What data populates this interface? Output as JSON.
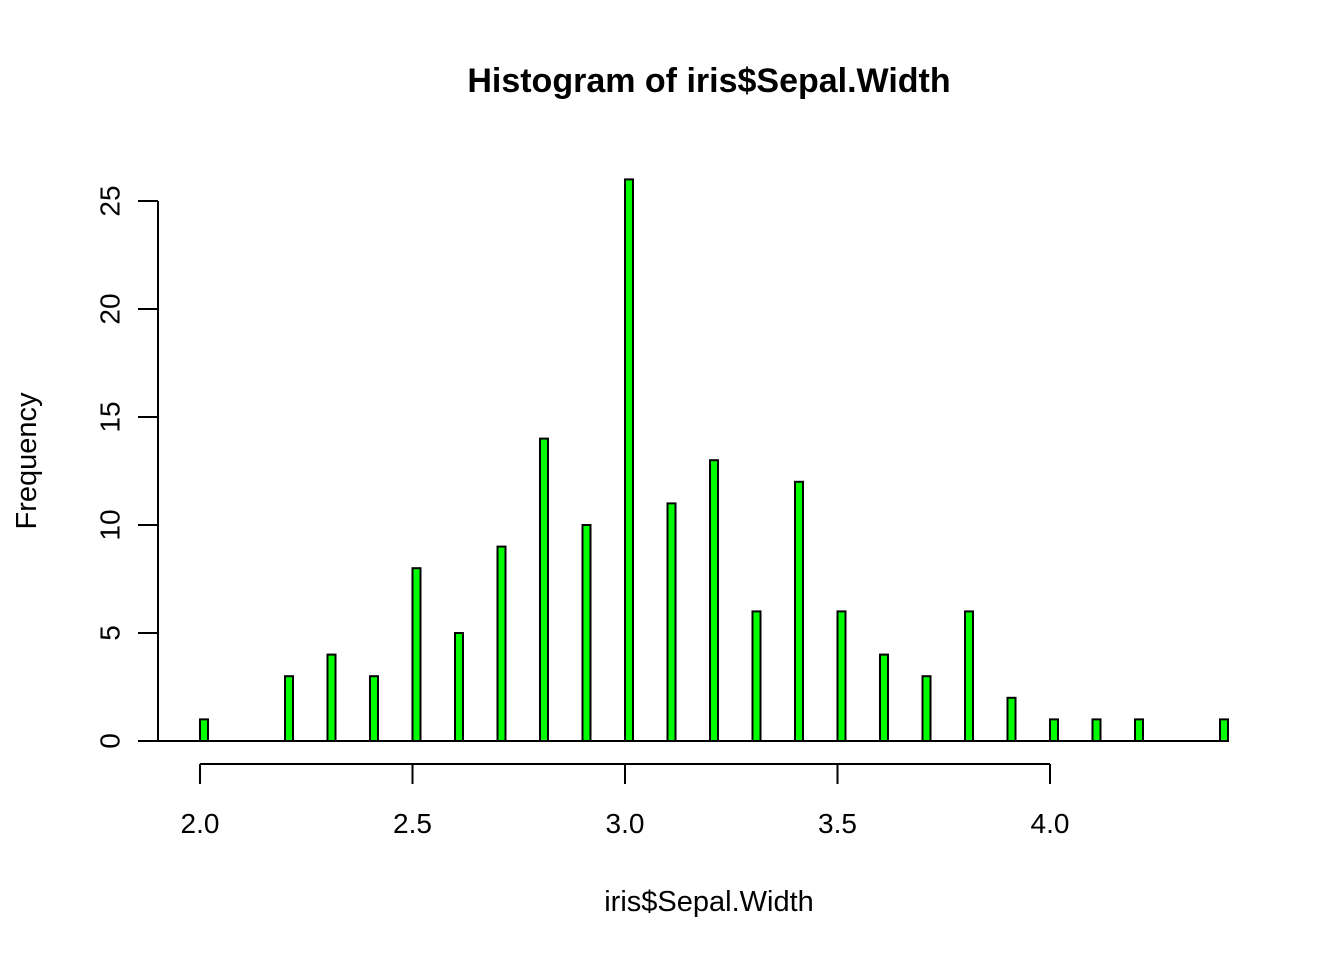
{
  "chart_data": {
    "type": "bar",
    "title": "Histogram of iris$Sepal.Width",
    "xlabel": "iris$Sepal.Width",
    "ylabel": "Frequency",
    "x": [
      2.0,
      2.2,
      2.3,
      2.4,
      2.5,
      2.6,
      2.7,
      2.8,
      2.9,
      3.0,
      3.1,
      3.2,
      3.3,
      3.4,
      3.5,
      3.6,
      3.7,
      3.8,
      3.9,
      4.0,
      4.1,
      4.2,
      4.4
    ],
    "values": [
      1,
      3,
      4,
      3,
      8,
      5,
      9,
      14,
      10,
      26,
      11,
      13,
      6,
      12,
      6,
      4,
      3,
      6,
      2,
      1,
      1,
      1,
      1
    ],
    "xlim": [
      2.0,
      4.4
    ],
    "ylim": [
      0,
      26
    ],
    "x_ticks": [
      2.0,
      2.5,
      3.0,
      3.5,
      4.0
    ],
    "x_tick_labels": [
      "2.0",
      "2.5",
      "3.0",
      "3.5",
      "4.0"
    ],
    "y_ticks": [
      0,
      5,
      10,
      15,
      20,
      25
    ],
    "y_tick_labels": [
      "0",
      "5",
      "10",
      "15",
      "20",
      "25"
    ],
    "bar_color": "#00ff00",
    "bar_edge_color": "#000000",
    "grid": false,
    "legend": "none"
  }
}
